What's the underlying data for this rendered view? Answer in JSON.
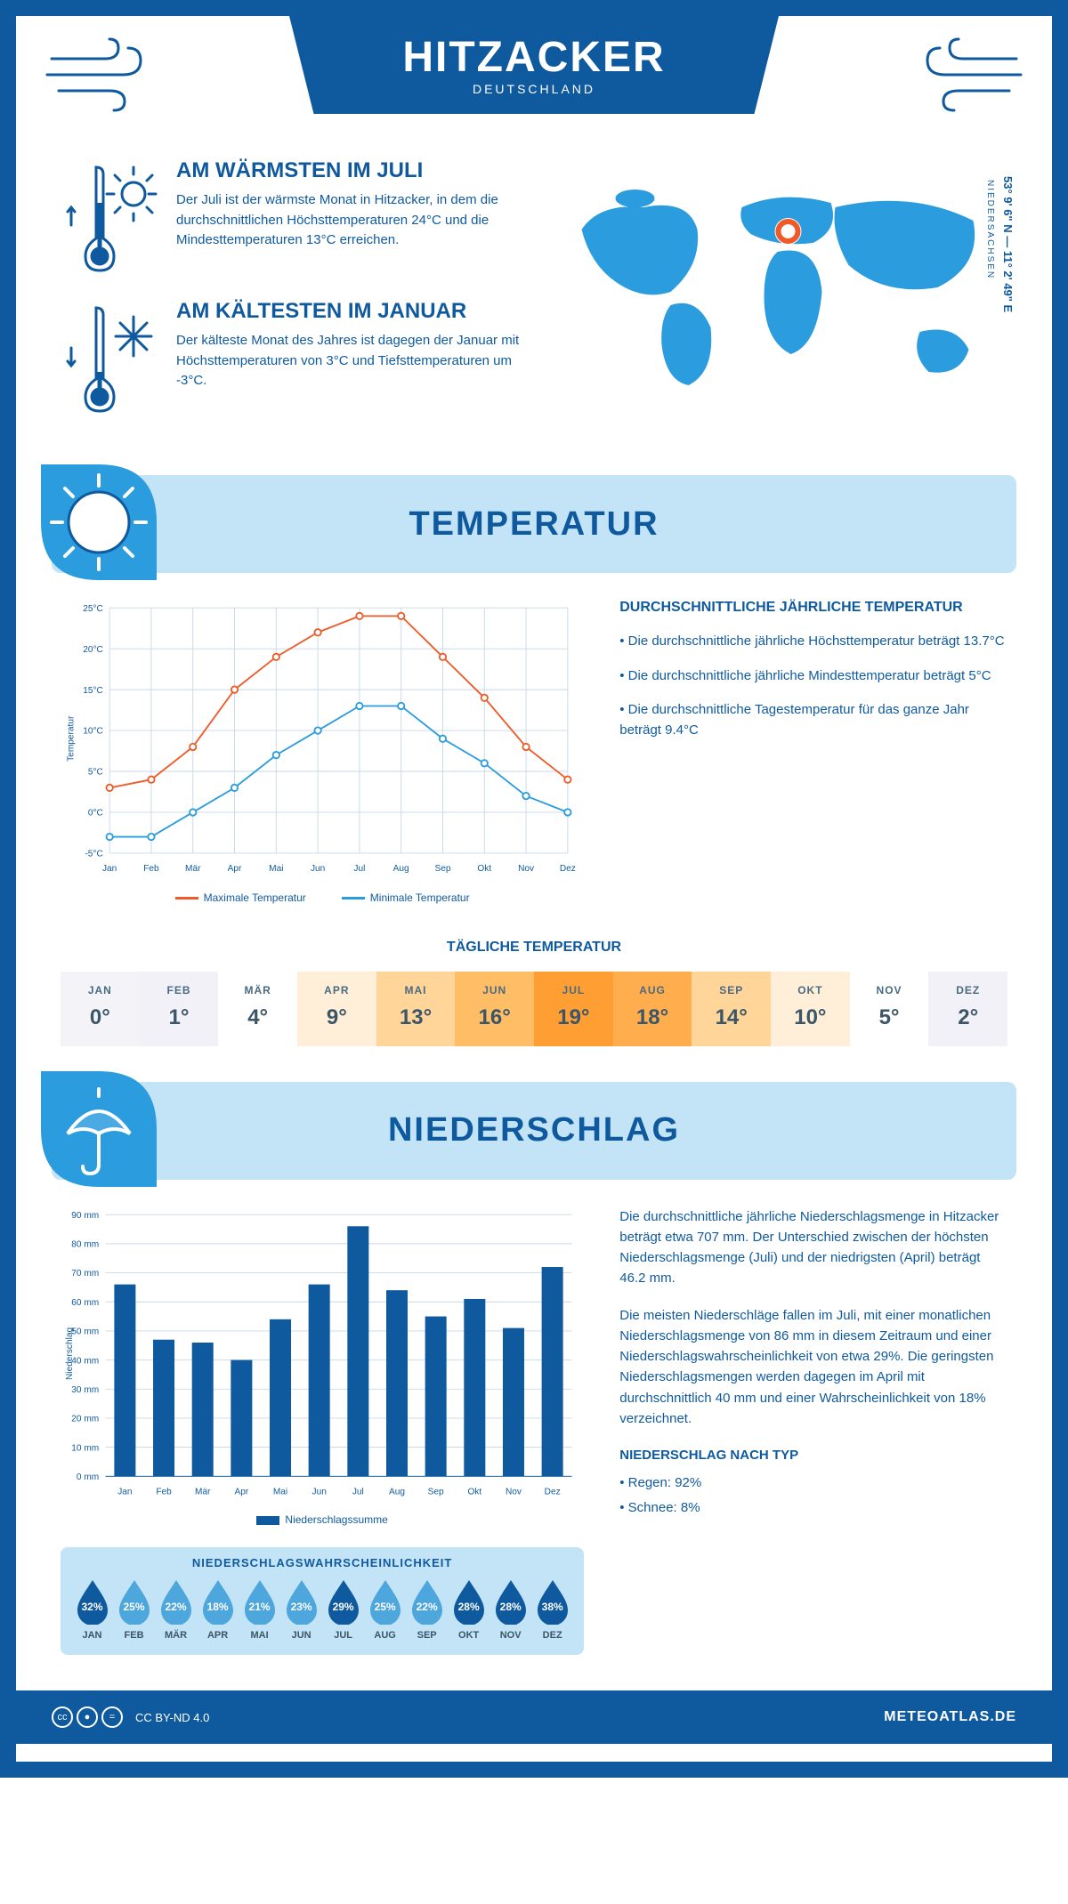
{
  "header": {
    "title": "HITZACKER",
    "country": "DEUTSCHLAND"
  },
  "coords": {
    "line": "53° 9' 6\" N — 11° 2' 49\" E",
    "region": "NIEDERSACHSEN"
  },
  "colors": {
    "primary": "#0f5a9e",
    "light_blue": "#c3e3f7",
    "accent_blue": "#2b9cde",
    "max_line": "#f05a28",
    "min_line": "#2b9cde",
    "grid": "#c7d8e6",
    "white": "#ffffff",
    "drop_dark": "#0f5a9e",
    "drop_light": "#4da6dc"
  },
  "intro": {
    "warm": {
      "title": "AM WÄRMSTEN IM JULI",
      "text": "Der Juli ist der wärmste Monat in Hitzacker, in dem die durchschnittlichen Höchsttemperaturen 24°C und die Mindesttemperaturen 13°C erreichen."
    },
    "cold": {
      "title": "AM KÄLTESTEN IM JANUAR",
      "text": "Der kälteste Monat des Jahres ist dagegen der Januar mit Höchsttemperaturen von 3°C und Tiefsttemperaturen um -3°C."
    }
  },
  "sections": {
    "temperature": "TEMPERATUR",
    "precipitation": "NIEDERSCHLAG"
  },
  "temperature_chart": {
    "type": "line",
    "months": [
      "Jan",
      "Feb",
      "Mär",
      "Apr",
      "Mai",
      "Jun",
      "Jul",
      "Aug",
      "Sep",
      "Okt",
      "Nov",
      "Dez"
    ],
    "max_series": [
      3,
      4,
      8,
      15,
      19,
      22,
      24,
      24,
      19,
      14,
      8,
      4
    ],
    "min_series": [
      -3,
      -3,
      0,
      3,
      7,
      10,
      13,
      13,
      9,
      6,
      2,
      0
    ],
    "ylim": [
      -5,
      25
    ],
    "ytick_step": 5,
    "yaxis_label": "Temperatur",
    "legend_max": "Maximale Temperatur",
    "legend_min": "Minimale Temperatur",
    "line_width": 2,
    "marker": "circle"
  },
  "temperature_info": {
    "heading": "DURCHSCHNITTLICHE JÄHRLICHE TEMPERATUR",
    "bullets": [
      "• Die durchschnittliche jährliche Höchsttemperatur beträgt 13.7°C",
      "• Die durchschnittliche jährliche Mindesttemperatur beträgt 5°C",
      "• Die durchschnittliche Tagestemperatur für das ganze Jahr beträgt 9.4°C"
    ]
  },
  "daily_temp": {
    "title": "TÄGLICHE TEMPERATUR",
    "months": [
      "JAN",
      "FEB",
      "MÄR",
      "APR",
      "MAI",
      "JUN",
      "JUL",
      "AUG",
      "SEP",
      "OKT",
      "NOV",
      "DEZ"
    ],
    "values": [
      "0°",
      "1°",
      "4°",
      "9°",
      "13°",
      "16°",
      "19°",
      "18°",
      "14°",
      "10°",
      "5°",
      "2°"
    ],
    "cell_colors": [
      "#f4f4f8",
      "#f1f1f7",
      "#ffffff",
      "#ffefd8",
      "#ffd599",
      "#ffbe66",
      "#ff9f33",
      "#ffad4d",
      "#ffd599",
      "#ffefd8",
      "#ffffff",
      "#f1f1f7"
    ]
  },
  "precip_chart": {
    "type": "bar",
    "months": [
      "Jan",
      "Feb",
      "Mär",
      "Apr",
      "Mai",
      "Jun",
      "Jul",
      "Aug",
      "Sep",
      "Okt",
      "Nov",
      "Dez"
    ],
    "values": [
      66,
      47,
      46,
      40,
      54,
      66,
      86,
      64,
      55,
      61,
      51,
      72
    ],
    "ylim": [
      0,
      90
    ],
    "ytick_step": 10,
    "yaxis_label": "Niederschlag",
    "bar_color": "#0f5a9e",
    "legend": "Niederschlagssumme",
    "bar_width": 0.55
  },
  "precip_text": {
    "p1": "Die durchschnittliche jährliche Niederschlagsmenge in Hitzacker beträgt etwa 707 mm. Der Unterschied zwischen der höchsten Niederschlagsmenge (Juli) und der niedrigsten (April) beträgt 46.2 mm.",
    "p2": "Die meisten Niederschläge fallen im Juli, mit einer monatlichen Niederschlagsmenge von 86 mm in diesem Zeitraum und einer Niederschlagswahrscheinlichkeit von etwa 29%. Die geringsten Niederschlagsmengen werden dagegen im April mit durchschnittlich 40 mm und einer Wahrscheinlichkeit von 18% verzeichnet.",
    "by_type_heading": "NIEDERSCHLAG NACH TYP",
    "by_type": [
      "• Regen: 92%",
      "• Schnee: 8%"
    ]
  },
  "probability": {
    "title": "NIEDERSCHLAGSWAHRSCHEINLICHKEIT",
    "months": [
      "JAN",
      "FEB",
      "MÄR",
      "APR",
      "MAI",
      "JUN",
      "JUL",
      "AUG",
      "SEP",
      "OKT",
      "NOV",
      "DEZ"
    ],
    "values": [
      "32%",
      "25%",
      "22%",
      "18%",
      "21%",
      "23%",
      "29%",
      "25%",
      "22%",
      "28%",
      "28%",
      "38%"
    ],
    "dark_threshold": 27
  },
  "footer": {
    "license": "CC BY-ND 4.0",
    "site": "METEOATLAS.DE"
  }
}
